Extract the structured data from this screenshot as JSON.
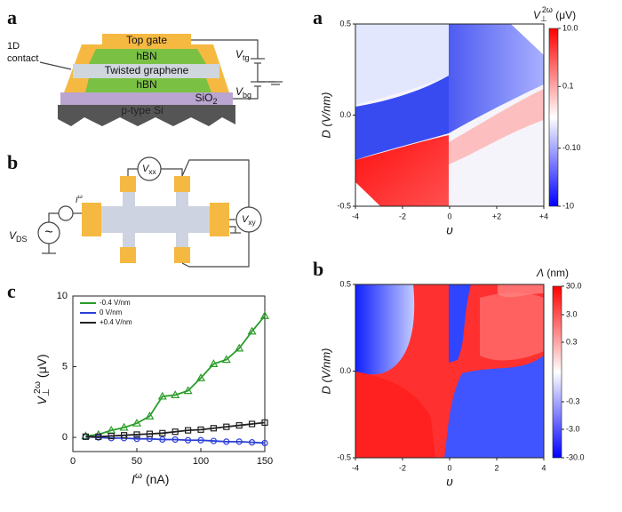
{
  "panel_labels": [
    "a",
    "b",
    "c",
    "a",
    "b"
  ],
  "schematic_a": {
    "layers": [
      "Top gate",
      "hBN",
      "Twisted graphene",
      "hBN",
      "SiO",
      "p-type Si"
    ],
    "layer_sub": "2",
    "contact": [
      "1D",
      "contact"
    ],
    "v_tg": {
      "main": "V",
      "sub": "tg"
    },
    "v_bg": {
      "main": "V",
      "sub": "bg"
    }
  },
  "schematic_b": {
    "v_xx": {
      "main": "V",
      "sub": "xx"
    },
    "v_xy": {
      "main": "V",
      "sub": "xy"
    },
    "v_ds": {
      "main": "V",
      "sub": "DS"
    },
    "i": {
      "main": "I",
      "sup": "ω"
    }
  },
  "chart_data": [
    {
      "type": "line",
      "x": [
        10,
        20,
        30,
        40,
        50,
        60,
        70,
        80,
        90,
        100,
        110,
        120,
        130,
        140,
        150
      ],
      "series": [
        {
          "name": "-0.4 V/nm",
          "color": "#2a9d2a",
          "marker": "triangle",
          "values": [
            0.1,
            0.2,
            0.5,
            0.7,
            1.0,
            1.5,
            2.9,
            3.0,
            3.3,
            4.2,
            5.2,
            5.5,
            6.3,
            7.5,
            8.6
          ]
        },
        {
          "name": "0 V/nm",
          "color": "#2b3fd6",
          "marker": "circle",
          "values": [
            0.05,
            0,
            -0.05,
            -0.05,
            -0.1,
            -0.1,
            -0.15,
            -0.15,
            -0.2,
            -0.2,
            -0.25,
            -0.3,
            -0.3,
            -0.35,
            -0.4
          ]
        },
        {
          "name": "+0.4 V/nm",
          "color": "#222222",
          "marker": "square",
          "values": [
            0.05,
            0.05,
            0.1,
            0.15,
            0.2,
            0.25,
            0.3,
            0.4,
            0.5,
            0.55,
            0.65,
            0.75,
            0.85,
            0.95,
            1.05
          ]
        }
      ],
      "xlim": [
        0,
        150
      ],
      "ylim": [
        -1,
        10
      ],
      "xticks": [
        0,
        50,
        100,
        150
      ],
      "yticks": [
        0,
        5,
        10
      ],
      "xlabel": {
        "main": "I",
        "sup": "ω",
        "unit": " (nA)"
      },
      "ylabel": {
        "main": "V",
        "sub": "⊥",
        "sup": "2ω",
        "unit": " (μV)"
      },
      "legend": "upper left"
    },
    {
      "type": "heatmap",
      "xlim": [
        -4,
        4
      ],
      "ylim": [
        -0.5,
        0.5
      ],
      "xticks": [
        -4,
        -2,
        0,
        {
          "value": 2,
          "label": "+2"
        },
        {
          "value": 4,
          "label": "+4"
        }
      ],
      "yticks": [
        -0.5,
        {
          "value": 0,
          "label": "0.0"
        },
        0.5
      ],
      "xlabel": "υ",
      "ylabel": "D (V/nm)",
      "zlim": [
        -10,
        10
      ],
      "zscale": "symlog",
      "cmap": [
        "#0000ff",
        "#ffffff",
        "#ff0000"
      ],
      "zticks": [
        {
          "value": 10,
          "label": "10.0"
        },
        0.1,
        {
          "value": -0.1,
          "label": "-0.10"
        },
        -10
      ],
      "zlabel": {
        "main": "V",
        "sub": "⊥",
        "sup": "2ω",
        "unit": " (μV)"
      }
    },
    {
      "type": "heatmap",
      "xlim": [
        -4,
        4
      ],
      "ylim": [
        -0.5,
        0.5
      ],
      "xticks": [
        -4,
        -2,
        0,
        2,
        4
      ],
      "yticks": [
        -0.5,
        {
          "value": 0,
          "label": "0.0"
        },
        0.5
      ],
      "xlabel": "υ",
      "ylabel": "D (V/nm)",
      "zlim": [
        -30,
        30
      ],
      "zscale": "symlog",
      "cmap": [
        "#0000ff",
        "#ffffff",
        "#ff0000"
      ],
      "zticks": [
        {
          "value": 30,
          "label": "30.0"
        },
        {
          "value": 3,
          "label": "3.0"
        },
        0.3,
        -0.3,
        {
          "value": -3,
          "label": "-3.0"
        },
        {
          "value": -30,
          "label": "-30.0"
        }
      ],
      "zlabel": {
        "main": "Λ",
        "unit": " (nm)"
      }
    }
  ]
}
